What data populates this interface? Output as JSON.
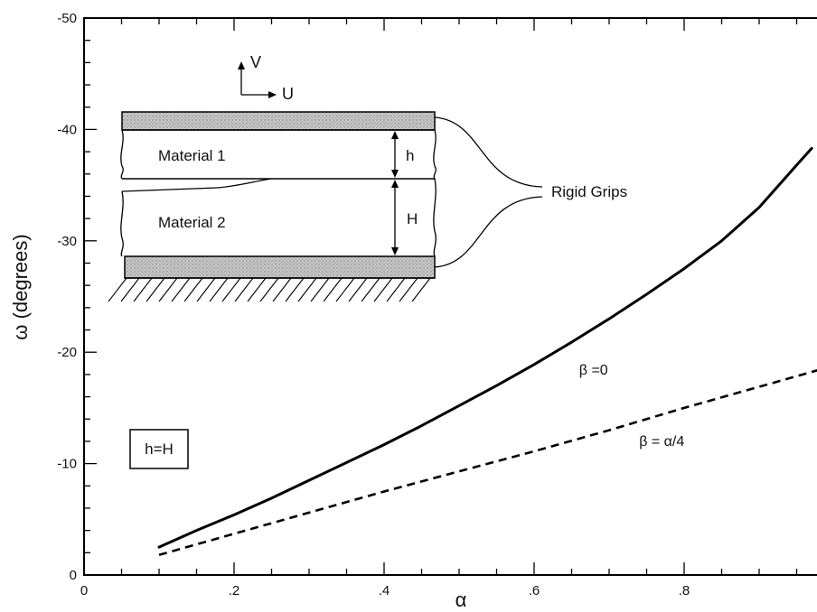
{
  "chart_data": {
    "type": "line",
    "xlabel": "α",
    "ylabel": "ω (degrees)",
    "xlim": [
      0,
      1.0
    ],
    "ylim": [
      0,
      -50
    ],
    "y_axis_inverted": true,
    "x_ticks": [
      0,
      0.2,
      0.4,
      0.6,
      0.8
    ],
    "x_tick_labels": [
      "0",
      ".2",
      ".4",
      ".6",
      ".8"
    ],
    "y_ticks": [
      0,
      -10,
      -20,
      -30,
      -40,
      -50
    ],
    "y_tick_labels": [
      "0",
      "-10",
      "-20",
      "-30",
      "-40",
      "-50"
    ],
    "grid": false,
    "series": [
      {
        "name": "β =0",
        "style": "solid",
        "color": "#000000",
        "x": [
          0.1,
          0.15,
          0.2,
          0.25,
          0.3,
          0.35,
          0.4,
          0.45,
          0.5,
          0.55,
          0.6,
          0.65,
          0.7,
          0.75,
          0.8,
          0.85,
          0.9,
          0.95,
          0.97
        ],
        "y": [
          -2.5,
          -4.0,
          -5.4,
          -6.9,
          -8.5,
          -10.1,
          -11.7,
          -13.4,
          -15.2,
          -17.0,
          -18.9,
          -20.9,
          -23.0,
          -25.2,
          -27.5,
          -30.0,
          -33.0,
          -36.8,
          -38.3
        ]
      },
      {
        "name": "β = α/4",
        "style": "dashed",
        "color": "#000000",
        "x": [
          0.1,
          0.2,
          0.3,
          0.4,
          0.5,
          0.6,
          0.7,
          0.8,
          0.9,
          1.0
        ],
        "y": [
          -1.8,
          -3.7,
          -5.6,
          -7.5,
          -9.3,
          -11.1,
          -13.0,
          -15.0,
          -16.9,
          -18.8
        ]
      }
    ],
    "annotations": [
      {
        "text": "β =0",
        "x": 0.66,
        "y": -18.0
      },
      {
        "text": "β = α/4",
        "x": 0.74,
        "y": -11.6
      },
      {
        "text": "h=H",
        "x": 0.165,
        "y": -11.1,
        "boxed": true
      }
    ],
    "inset_diagram": {
      "labels": {
        "v": "V",
        "u": "U",
        "material1": "Material 1",
        "material2": "Material 2",
        "h": "h",
        "H": "H",
        "grips": "Rigid Grips"
      }
    }
  }
}
